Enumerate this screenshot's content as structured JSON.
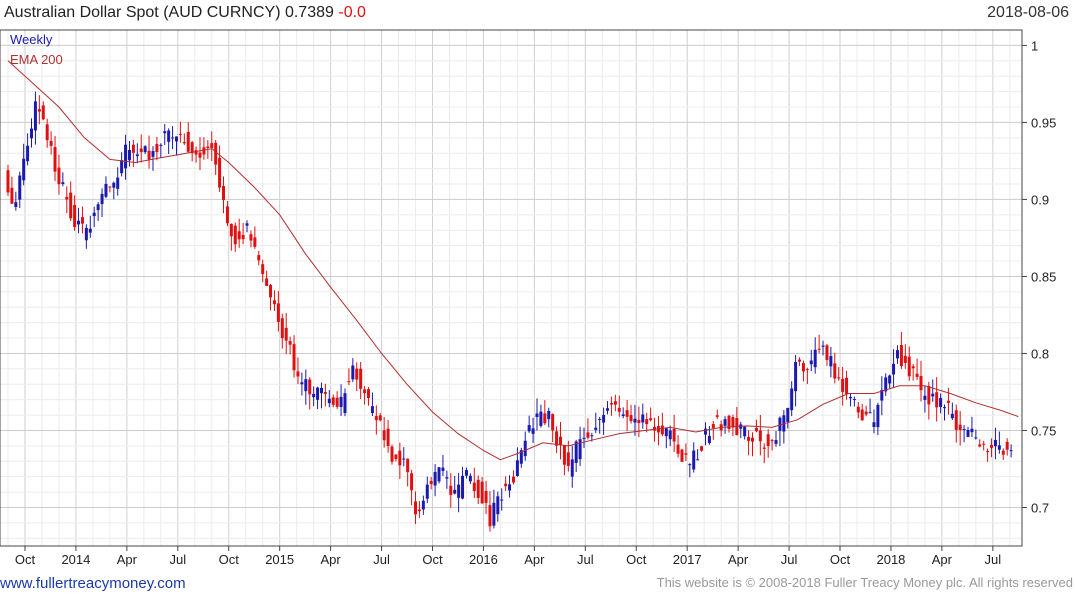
{
  "header": {
    "title_main": "Australian Dollar Spot (AUD CURNCY) 0.7389",
    "title_change": "-0.0",
    "date": "2018-08-06"
  },
  "legend": {
    "series1": "Weekly",
    "series2": "EMA 200"
  },
  "footer": {
    "site": "www.fullertreacymoney.com",
    "copyright": "This website is © 2008-2018 Fuller Treacy Money plc. All rights reserved"
  },
  "colors": {
    "up": "#1a1ab0",
    "down": "#e01010",
    "ema": "#b03030",
    "grid": "#dddddd"
  },
  "chart_data": {
    "type": "candlestick",
    "title": "Australian Dollar Spot (AUD CURNCY) 0.7389 -0.0",
    "x_unit": "months since Sep 2013",
    "xlim": [
      0,
      59.6
    ],
    "ylim": [
      0.675,
      1.01
    ],
    "y_ticks": [
      0.7,
      0.75,
      0.8,
      0.85,
      0.9,
      0.95,
      1
    ],
    "y_tick_labels": [
      "0.7",
      "0.75",
      "0.8",
      "0.85",
      "0.9",
      "0.95",
      "1"
    ],
    "x_ticks": [
      {
        "t": 1,
        "label": "Oct"
      },
      {
        "t": 4,
        "label": "2014"
      },
      {
        "t": 7,
        "label": "Apr"
      },
      {
        "t": 10,
        "label": "Jul"
      },
      {
        "t": 13,
        "label": "Oct"
      },
      {
        "t": 16,
        "label": "2015"
      },
      {
        "t": 19,
        "label": "Apr"
      },
      {
        "t": 22,
        "label": "Jul"
      },
      {
        "t": 25,
        "label": "Oct"
      },
      {
        "t": 28,
        "label": "2016"
      },
      {
        "t": 31,
        "label": "Apr"
      },
      {
        "t": 34,
        "label": "Jul"
      },
      {
        "t": 37,
        "label": "Oct"
      },
      {
        "t": 40,
        "label": "2017"
      },
      {
        "t": 43,
        "label": "Apr"
      },
      {
        "t": 46,
        "label": "Jul"
      },
      {
        "t": 49,
        "label": "Oct"
      },
      {
        "t": 52,
        "label": "2018"
      },
      {
        "t": 55,
        "label": "Apr"
      },
      {
        "t": 58,
        "label": "Jul"
      }
    ],
    "price_path": [
      [
        0,
        0.92
      ],
      [
        0.6,
        0.895
      ],
      [
        1.3,
        0.935
      ],
      [
        2,
        0.965
      ],
      [
        2.8,
        0.93
      ],
      [
        3.8,
        0.895
      ],
      [
        4.8,
        0.875
      ],
      [
        5.5,
        0.9
      ],
      [
        6.5,
        0.91
      ],
      [
        7.3,
        0.935
      ],
      [
        8.5,
        0.93
      ],
      [
        9.5,
        0.94
      ],
      [
        10.5,
        0.94
      ],
      [
        11.3,
        0.93
      ],
      [
        12.3,
        0.935
      ],
      [
        12.8,
        0.905
      ],
      [
        13.5,
        0.875
      ],
      [
        14.3,
        0.88
      ],
      [
        15,
        0.86
      ],
      [
        15.8,
        0.83
      ],
      [
        16.6,
        0.81
      ],
      [
        17.4,
        0.78
      ],
      [
        18.2,
        0.775
      ],
      [
        19,
        0.77
      ],
      [
        19.8,
        0.765
      ],
      [
        20.5,
        0.795
      ],
      [
        21.3,
        0.77
      ],
      [
        22,
        0.755
      ],
      [
        22.8,
        0.735
      ],
      [
        23.6,
        0.725
      ],
      [
        24.3,
        0.695
      ],
      [
        25,
        0.715
      ],
      [
        25.8,
        0.725
      ],
      [
        26.5,
        0.705
      ],
      [
        27.2,
        0.72
      ],
      [
        28,
        0.71
      ],
      [
        28.6,
        0.69
      ],
      [
        29.3,
        0.71
      ],
      [
        30,
        0.72
      ],
      [
        30.6,
        0.745
      ],
      [
        31.3,
        0.755
      ],
      [
        32,
        0.76
      ],
      [
        32.6,
        0.74
      ],
      [
        33.2,
        0.725
      ],
      [
        34,
        0.745
      ],
      [
        34.8,
        0.755
      ],
      [
        35.8,
        0.765
      ],
      [
        36.8,
        0.76
      ],
      [
        37.8,
        0.76
      ],
      [
        38.6,
        0.75
      ],
      [
        39.5,
        0.745
      ],
      [
        40.3,
        0.725
      ],
      [
        41,
        0.74
      ],
      [
        41.8,
        0.755
      ],
      [
        42.6,
        0.755
      ],
      [
        43.5,
        0.75
      ],
      [
        44.3,
        0.745
      ],
      [
        45.2,
        0.74
      ],
      [
        46,
        0.76
      ],
      [
        46.6,
        0.79
      ],
      [
        47.3,
        0.795
      ],
      [
        48.2,
        0.8
      ],
      [
        48.9,
        0.79
      ],
      [
        49.7,
        0.775
      ],
      [
        50.5,
        0.76
      ],
      [
        51.2,
        0.755
      ],
      [
        52,
        0.785
      ],
      [
        52.6,
        0.8
      ],
      [
        53.3,
        0.79
      ],
      [
        54,
        0.775
      ],
      [
        54.7,
        0.77
      ],
      [
        55.5,
        0.765
      ],
      [
        56,
        0.755
      ],
      [
        56.7,
        0.75
      ],
      [
        57.4,
        0.74
      ],
      [
        58,
        0.74
      ],
      [
        58.6,
        0.74
      ],
      [
        59.2,
        0.7389
      ]
    ],
    "ema200_path": [
      [
        0,
        0.99
      ],
      [
        1.5,
        0.975
      ],
      [
        3,
        0.96
      ],
      [
        4.5,
        0.94
      ],
      [
        6,
        0.926
      ],
      [
        7.5,
        0.924
      ],
      [
        9,
        0.927
      ],
      [
        10.5,
        0.93
      ],
      [
        12,
        0.933
      ],
      [
        13,
        0.924
      ],
      [
        14.5,
        0.908
      ],
      [
        16,
        0.89
      ],
      [
        17.5,
        0.865
      ],
      [
        19,
        0.843
      ],
      [
        20.5,
        0.822
      ],
      [
        22,
        0.8
      ],
      [
        23.5,
        0.78
      ],
      [
        25,
        0.762
      ],
      [
        26.5,
        0.748
      ],
      [
        28,
        0.737
      ],
      [
        29,
        0.731
      ],
      [
        30,
        0.735
      ],
      [
        31.5,
        0.742
      ],
      [
        33,
        0.74
      ],
      [
        34.5,
        0.744
      ],
      [
        36,
        0.748
      ],
      [
        37.5,
        0.75
      ],
      [
        39,
        0.752
      ],
      [
        40.5,
        0.749
      ],
      [
        42,
        0.752
      ],
      [
        43.5,
        0.753
      ],
      [
        45,
        0.752
      ],
      [
        46.5,
        0.757
      ],
      [
        48,
        0.767
      ],
      [
        49.5,
        0.774
      ],
      [
        51,
        0.774
      ],
      [
        52.5,
        0.779
      ],
      [
        54,
        0.779
      ],
      [
        55.5,
        0.774
      ],
      [
        57,
        0.768
      ],
      [
        58.5,
        0.763
      ],
      [
        59.5,
        0.759
      ]
    ]
  }
}
